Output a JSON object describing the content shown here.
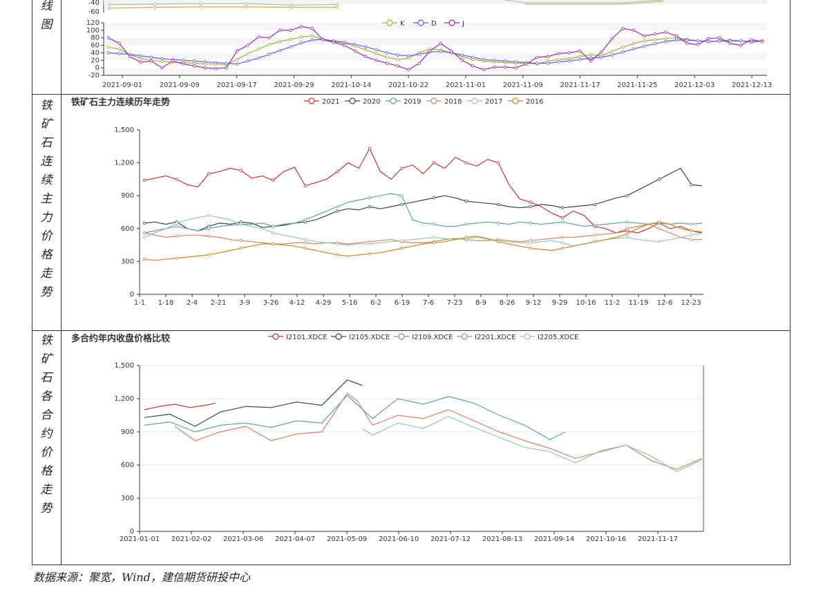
{
  "sections": {
    "kdj_label": "线图",
    "s2_label": "铁矿石连续主力价格走势",
    "s3_label": "铁矿石各合约价格走势"
  },
  "footer": "数据来源：聚宽，Wind，建信期货研投中心",
  "chart_data": [
    {
      "type": "line",
      "id": "macd_partial",
      "y_ticks": [
        -40,
        -60
      ],
      "series": [
        {
          "name": "",
          "color": "#8fbcbb",
          "x": [
            0,
            15,
            30,
            45,
            60,
            75
          ],
          "values": [
            -44,
            -43,
            -42,
            -42,
            -45,
            -44
          ]
        },
        {
          "name": "",
          "color": "#e6a23c",
          "x": [
            0,
            15,
            30,
            45,
            60,
            75
          ],
          "values": [
            -52,
            -50,
            -49,
            -49,
            -50,
            -50
          ]
        }
      ]
    },
    {
      "type": "line",
      "id": "kdj",
      "legend": [
        "K",
        "D",
        "J"
      ],
      "colors": {
        "K": "#a8a832",
        "D": "#5b5bf0",
        "J": "#a02aa0"
      },
      "ylim": [
        -20,
        120
      ],
      "y_ticks": [
        -20,
        0,
        20,
        40,
        60,
        80,
        100,
        120
      ],
      "x_tick_labels": [
        "2021-09-01",
        "2021-09-09",
        "2021-09-17",
        "2021-09-29",
        "2021-10-14",
        "2021-10-22",
        "2021-11-01",
        "2021-11-09",
        "2021-11-17",
        "2021-11-25",
        "2021-12-03",
        "2021-12-13"
      ],
      "series": [
        {
          "name": "K",
          "values": [
            55,
            50,
            35,
            25,
            20,
            17,
            15,
            14,
            12,
            10,
            10,
            8,
            22,
            38,
            50,
            62,
            70,
            76,
            82,
            85,
            75,
            70,
            65,
            58,
            48,
            38,
            28,
            22,
            26,
            40,
            50,
            48,
            40,
            30,
            22,
            18,
            16,
            14,
            12,
            12,
            10,
            18,
            22,
            24,
            30,
            35,
            32,
            44,
            55,
            65,
            72,
            75,
            78,
            80,
            76,
            72,
            70,
            72,
            74,
            72,
            68,
            72
          ]
        },
        {
          "name": "D",
          "values": [
            40,
            38,
            36,
            32,
            28,
            24,
            22,
            20,
            18,
            16,
            14,
            12,
            10,
            18,
            26,
            36,
            46,
            56,
            66,
            74,
            76,
            72,
            68,
            62,
            56,
            48,
            40,
            34,
            32,
            36,
            42,
            44,
            40,
            34,
            28,
            22,
            20,
            18,
            16,
            14,
            12,
            12,
            16,
            18,
            22,
            26,
            28,
            34,
            42,
            50,
            58,
            64,
            70,
            74,
            74,
            72,
            70,
            71,
            72,
            72,
            70,
            71
          ]
        },
        {
          "name": "J",
          "values": [
            80,
            65,
            30,
            15,
            18,
            0,
            18,
            10,
            5,
            0,
            -2,
            0,
            45,
            60,
            82,
            80,
            100,
            100,
            110,
            105,
            75,
            68,
            60,
            45,
            30,
            20,
            12,
            5,
            -5,
            12,
            45,
            65,
            45,
            20,
            5,
            -5,
            2,
            2,
            0,
            10,
            28,
            30,
            38,
            40,
            45,
            18,
            42,
            78,
            105,
            100,
            85,
            90,
            95,
            85,
            65,
            62,
            78,
            80,
            65,
            60,
            75,
            70
          ]
        }
      ]
    },
    {
      "type": "line",
      "id": "continuous_main",
      "title": "铁矿石主力连续历年走势",
      "legend": [
        "2021",
        "2020",
        "2019",
        "2018",
        "2017",
        "2016"
      ],
      "colors": {
        "2021": "#c23531",
        "2020": "#2f4554",
        "2019": "#61a0a8",
        "2018": "#d48265",
        "2017": "#91c7ae",
        "2016": "#ca8622"
      },
      "ylim": [
        0,
        1500
      ],
      "y_ticks": [
        0,
        300,
        600,
        900,
        1200,
        1500
      ],
      "y_tick_labels": [
        "0",
        "300",
        "600",
        "900",
        "1,200",
        "1,500"
      ],
      "x_tick_labels": [
        "1-1",
        "1-18",
        "2-4",
        "2-21",
        "3-9",
        "3-26",
        "4-12",
        "4-29",
        "5-16",
        "6-2",
        "6-19",
        "7-6",
        "7-23",
        "8-9",
        "8-26",
        "9-12",
        "9-29",
        "10-16",
        "11-2",
        "11-19",
        "12-6",
        "12-23"
      ],
      "series": [
        {
          "name": "2021",
          "values": [
            1040,
            1060,
            1080,
            1050,
            1000,
            980,
            1100,
            1120,
            1150,
            1130,
            1060,
            1080,
            1040,
            1120,
            1160,
            990,
            1020,
            1050,
            1120,
            1200,
            1150,
            1330,
            1120,
            1050,
            1150,
            1180,
            1100,
            1200,
            1150,
            1250,
            1200,
            1170,
            1230,
            1200,
            1000,
            870,
            840,
            800,
            740,
            700,
            760,
            720,
            620,
            600,
            560,
            580,
            560,
            600,
            650,
            600,
            620,
            580,
            560
          ]
        },
        {
          "name": "2020",
          "values": [
            650,
            660,
            640,
            660,
            600,
            580,
            620,
            650,
            640,
            660,
            650,
            610,
            620,
            630,
            650,
            660,
            680,
            720,
            760,
            780,
            770,
            800,
            780,
            800,
            820,
            840,
            860,
            880,
            900,
            880,
            850,
            840,
            830,
            820,
            800,
            790,
            800,
            820,
            810,
            790,
            800,
            810,
            820,
            850,
            880,
            900,
            950,
            1000,
            1050,
            1100,
            1150,
            1000,
            990
          ]
        },
        {
          "name": "2019",
          "values": [
            560,
            580,
            600,
            620,
            600,
            580,
            600,
            620,
            630,
            640,
            640,
            650,
            620,
            640,
            650,
            680,
            720,
            760,
            800,
            840,
            860,
            880,
            900,
            920,
            900,
            680,
            650,
            640,
            620,
            620,
            640,
            650,
            660,
            650,
            640,
            660,
            650,
            640,
            650,
            660,
            640,
            620,
            630,
            640,
            650,
            660,
            650,
            640,
            650,
            640,
            650,
            640,
            650
          ]
        },
        {
          "name": "2018",
          "values": [
            560,
            540,
            520,
            530,
            540,
            540,
            530,
            520,
            500,
            490,
            480,
            470,
            460,
            460,
            470,
            470,
            460,
            470,
            470,
            460,
            470,
            480,
            490,
            500,
            480,
            470,
            470,
            480,
            500,
            510,
            500,
            490,
            490,
            500,
            490,
            480,
            490,
            500,
            510,
            520,
            520,
            530,
            540,
            550,
            560,
            600,
            620,
            640,
            600,
            560,
            520,
            500,
            500
          ]
        },
        {
          "name": "2017",
          "values": [
            520,
            560,
            600,
            650,
            680,
            700,
            720,
            700,
            680,
            640,
            620,
            600,
            560,
            540,
            520,
            500,
            480,
            470,
            460,
            450,
            460,
            460,
            470,
            480,
            490,
            500,
            510,
            520,
            510,
            500,
            510,
            520,
            500,
            490,
            480,
            470,
            470,
            480,
            490,
            470,
            440,
            460,
            480,
            500,
            510,
            520,
            500,
            490,
            480,
            500,
            520,
            540,
            560
          ]
        },
        {
          "name": "2016",
          "values": [
            320,
            310,
            320,
            330,
            340,
            350,
            360,
            380,
            400,
            420,
            440,
            460,
            460,
            450,
            440,
            420,
            400,
            380,
            360,
            350,
            360,
            370,
            380,
            400,
            420,
            440,
            460,
            470,
            480,
            500,
            520,
            530,
            510,
            480,
            460,
            440,
            420,
            410,
            400,
            420,
            440,
            460,
            480,
            500,
            520,
            550,
            600,
            640,
            660,
            640,
            600,
            580,
            570
          ]
        }
      ]
    },
    {
      "type": "line",
      "id": "contract_compare",
      "title": "多合约年内收盘价格比较",
      "legend": [
        "I2101.XDCE",
        "I2105.XDCE",
        "I2109.XDCE",
        "I2201.XDCE",
        "I2205.XDCE"
      ],
      "colors": {
        "I2101.XDCE": "#c23531",
        "I2105.XDCE": "#2f4554",
        "I2109.XDCE": "#61a0a8",
        "I2201.XDCE": "#d48265",
        "I2205.XDCE": "#91c7ae"
      },
      "ylim": [
        0,
        1500
      ],
      "y_ticks": [
        0,
        300,
        600,
        900,
        1200,
        1500
      ],
      "y_tick_labels": [
        "0",
        "300",
        "600",
        "900",
        "1,200",
        "1,500"
      ],
      "x_tick_labels": [
        "2021-01-01",
        "2021-02-02",
        "2021-03-06",
        "2021-04-07",
        "2021-05-09",
        "2021-06-10",
        "2021-07-12",
        "2021-08-13",
        "2021-09-14",
        "2021-10-16",
        "2021-11-17"
      ],
      "series": [
        {
          "name": "I2101.XDCE",
          "x": [
            0,
            0.3,
            0.6,
            0.9,
            1.2,
            1.4
          ],
          "values": [
            1100,
            1130,
            1150,
            1120,
            1140,
            1160
          ]
        },
        {
          "name": "I2105.XDCE",
          "x": [
            0,
            0.5,
            1.0,
            1.5,
            2.0,
            2.5,
            3.0,
            3.5,
            4.0,
            4.3
          ],
          "values": [
            1030,
            1060,
            950,
            1080,
            1130,
            1120,
            1170,
            1140,
            1370,
            1320
          ]
        },
        {
          "name": "I2109.XDCE",
          "x": [
            0,
            0.5,
            1.0,
            1.5,
            2.0,
            2.5,
            3.0,
            3.5,
            4.0,
            4.5,
            5.0,
            5.5,
            6.0,
            6.5,
            7.0,
            7.5,
            8.0,
            8.3
          ],
          "values": [
            960,
            990,
            900,
            960,
            980,
            940,
            1000,
            980,
            1230,
            1020,
            1200,
            1150,
            1220,
            1160,
            1050,
            960,
            830,
            900
          ]
        },
        {
          "name": "I2201.XDCE",
          "x": [
            0.6,
            1.0,
            1.5,
            2.0,
            2.5,
            3.0,
            3.5,
            4.0,
            4.2,
            4.5,
            5.0,
            5.5,
            6.0,
            6.5,
            7.0,
            7.5,
            8.0,
            8.5,
            9.0,
            9.5,
            10.0,
            10.5,
            11.0
          ],
          "values": [
            950,
            820,
            900,
            950,
            820,
            880,
            900,
            1250,
            1180,
            960,
            1050,
            1020,
            1100,
            1000,
            900,
            820,
            750,
            660,
            720,
            780,
            640,
            560,
            660
          ]
        },
        {
          "name": "I2205.XDCE",
          "x": [
            4.3,
            4.5,
            5.0,
            5.5,
            6.0,
            6.5,
            7.0,
            7.5,
            8.0,
            8.5,
            9.0,
            9.5,
            10.0,
            10.5,
            11.0
          ],
          "values": [
            930,
            870,
            980,
            930,
            1040,
            940,
            850,
            760,
            720,
            620,
            730,
            780,
            680,
            540,
            650
          ]
        }
      ]
    }
  ]
}
